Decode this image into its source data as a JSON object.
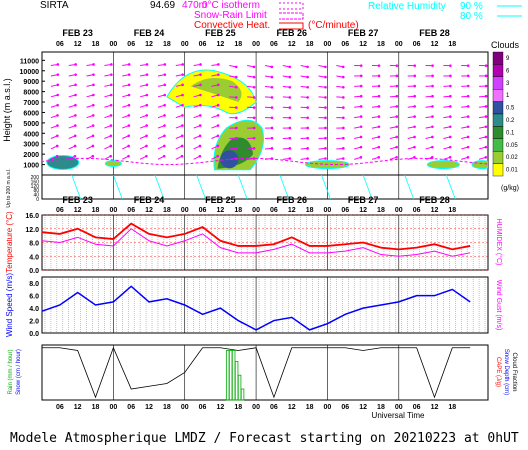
{
  "header": {
    "station": "SIRTA",
    "coords": "94.69",
    "coords_suffix": "470m",
    "legend_isotherm": "0°C isotherm",
    "legend_snow_rain": "Snow-Rain Limit",
    "legend_convective": "Convective Heat.",
    "legend_convective_unit": "(°C/minute)",
    "legend_rh": "Relative Humidity",
    "rh_levels": [
      "90 %",
      "80 %"
    ]
  },
  "footer": "Modele Atmospherique LMDZ / Forecast starting on 20210223 at 0hUT",
  "colors": {
    "isotherm": "#ff00ff",
    "snow_rain": "#ff00ff",
    "convective": "#ff0000",
    "rh": "#00ffff",
    "wind_arrow": "#ff00ff",
    "temp": "#ff0000",
    "humidex": "#ff00ff",
    "wind": "#0000ff",
    "rain": "#00aa00",
    "label_blue": "#0000ff",
    "label_red": "#ff0000"
  },
  "chart_data": [
    {
      "type": "heatmap",
      "panel": "clouds",
      "xlabel": "",
      "ylabel": "Height  (m a.s.l.)",
      "ylabel_lower": "Up to 200 m a.s.l.",
      "x_day_labels": [
        "FEB 23",
        "FEB 24",
        "FEB 25",
        "FEB 26",
        "FEB 27",
        "FEB 28"
      ],
      "x_hour_labels": [
        "06",
        "12",
        "18",
        "00",
        "06",
        "12",
        "18",
        "00",
        "06",
        "12",
        "18",
        "00",
        "06",
        "12",
        "18",
        "00",
        "06",
        "12",
        "18",
        "00",
        "06",
        "12",
        "18"
      ],
      "y_ticks": [
        11000,
        10000,
        9000,
        8000,
        7000,
        6000,
        5000,
        4000,
        3000,
        2000,
        1000
      ],
      "y_ticks_low": [
        200,
        180,
        160,
        140,
        120,
        100,
        80,
        60,
        40,
        20,
        0
      ],
      "colorbar_title": "Clouds",
      "colorbar_unit": "(g/kg)",
      "colorbar_levels": [
        "9",
        "6",
        "3",
        "1",
        "0.5",
        "0.2",
        "0.1",
        "0.05",
        "0.02",
        "0.01"
      ],
      "colorbar_colors": [
        "#800080",
        "#b000b0",
        "#d040ff",
        "#f070ff",
        "#3050a0",
        "#2e8b8b",
        "#2e8b2e",
        "#44bb44",
        "#9acd32",
        "#ffff00"
      ],
      "cloud_blobs": [
        {
          "t_hours": 6,
          "h_m": 1000,
          "level": "0.5"
        },
        {
          "t_hours": 58,
          "h_m": 1500,
          "level": "1"
        },
        {
          "t_hours": 52,
          "h_m": 7000,
          "level": "0.02"
        },
        {
          "t_hours": 96,
          "h_m": 1000,
          "level": "0.05"
        },
        {
          "t_hours": 132,
          "h_m": 1000,
          "level": "0.05"
        }
      ]
    },
    {
      "type": "line",
      "panel": "temperature",
      "ylabel": "Temperature (°C)",
      "ylabel_right": "HUMIDEX (°C)",
      "y_ticks": [
        16.0,
        12.0,
        8.0,
        4.0,
        0.0
      ],
      "ylim": [
        0,
        16
      ],
      "x_hours": [
        0,
        6,
        12,
        18,
        24,
        30,
        36,
        42,
        48,
        54,
        60,
        66,
        72,
        78,
        84,
        90,
        96,
        102,
        108,
        114,
        120,
        126,
        132,
        138,
        144
      ],
      "series": [
        {
          "values": [
            11.0,
            10.5,
            12.0,
            9.5,
            9.0,
            13.5,
            10.5,
            9.5,
            10.5,
            12.5,
            8.5,
            7.0,
            7.0,
            7.5,
            9.5,
            7.0,
            7.0,
            7.5,
            8.0,
            6.5,
            6.0,
            6.5,
            7.5,
            6.0,
            7.0
          ]
        },
        {
          "values": [
            8.5,
            8.0,
            9.5,
            7.5,
            7.0,
            12.0,
            8.5,
            7.0,
            8.5,
            10.5,
            6.5,
            5.0,
            5.0,
            6.0,
            7.5,
            5.0,
            5.0,
            5.5,
            6.5,
            4.5,
            4.0,
            4.5,
            5.5,
            4.0,
            5.0
          ]
        }
      ]
    },
    {
      "type": "line",
      "panel": "wind",
      "ylabel": "Wind Speed (m/s)",
      "ylabel_right": "Wind Gust (m/s)",
      "y_ticks": [
        8.0,
        6.0,
        4.0,
        2.0,
        0.0
      ],
      "ylim": [
        0,
        9
      ],
      "x_hours": [
        0,
        6,
        12,
        18,
        24,
        30,
        36,
        42,
        48,
        54,
        60,
        66,
        72,
        78,
        84,
        90,
        96,
        102,
        108,
        114,
        120,
        126,
        132,
        138,
        144
      ],
      "series": [
        {
          "values": [
            3.5,
            4.5,
            6.5,
            4.5,
            5.0,
            7.5,
            5.0,
            5.5,
            4.5,
            3.0,
            4.0,
            2.0,
            0.5,
            2.0,
            2.5,
            0.5,
            1.5,
            3.0,
            4.0,
            4.5,
            5.0,
            6.0,
            6.0,
            7.0,
            5.0
          ]
        }
      ]
    },
    {
      "type": "bar",
      "panel": "precip",
      "ylabel_left_1": "Rain (mm / hour)",
      "ylabel_left_2": "Snow (cm / hour)",
      "ylabel_right_1": "CAPE (J/g)",
      "ylabel_right_2": "Snow Depth (cm)",
      "ylabel_right_3": "Cloud Fraction",
      "xlabel": "Universal Time",
      "rain_x_hours": [
        62,
        63,
        64,
        65,
        66,
        67
      ],
      "rain_values": [
        0.9,
        0.9,
        0.9,
        0.7,
        0.45,
        0.2
      ],
      "cloud_fraction_x_hours": [
        0,
        6,
        12,
        18,
        24,
        30,
        36,
        42,
        48,
        54,
        60,
        66,
        72,
        78,
        84,
        90,
        96,
        102,
        108,
        114,
        120,
        126,
        132,
        138,
        144
      ],
      "cloud_fraction": [
        0.95,
        0.95,
        0.9,
        0.05,
        0.95,
        0.2,
        0.25,
        0.3,
        0.5,
        0.95,
        0.95,
        0.9,
        0.95,
        0.05,
        0.95,
        0.95,
        0.95,
        0.95,
        0.9,
        0.95,
        0.95,
        0.95,
        0.05,
        0.95,
        0.95
      ]
    }
  ]
}
